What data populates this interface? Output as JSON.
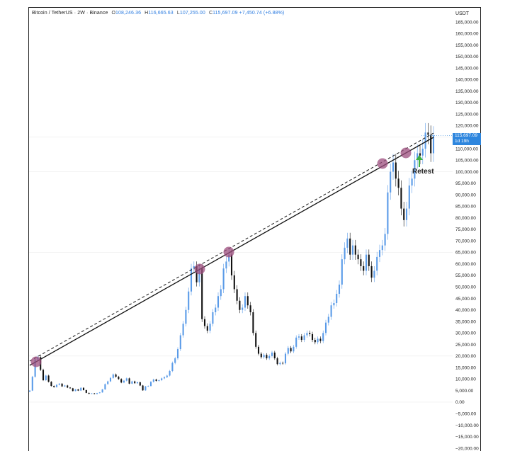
{
  "header": {
    "symbol": "Bitcoin / TetherUS · 2W · Binance",
    "open_label": "O",
    "open": "108,246.36",
    "high_label": "H",
    "high": "116,665.63",
    "low_label": "L",
    "low": "107,255.00",
    "close_label": "C",
    "close": "115,697.09",
    "change": "+7,450.74 (+6.88%)"
  },
  "axis": {
    "currency": "USDT",
    "last_price": "115,697.09",
    "countdown": "1d 19h"
  },
  "annotation": {
    "retest": "Retest"
  },
  "colors": {
    "up": "#5a9be8",
    "down": "#111111",
    "trendline": "#111111",
    "touch_marker": "#9c4d7e",
    "arrow": "#3cb043",
    "price_tag": "#2e86de"
  },
  "chart_data": {
    "type": "candlestick",
    "interval": "2W",
    "ylim": [
      -20000,
      165000
    ],
    "y_ticks": [
      -20000,
      -15000,
      -10000,
      -5000,
      0,
      5000,
      10000,
      15000,
      20000,
      25000,
      30000,
      35000,
      40000,
      45000,
      50000,
      55000,
      60000,
      65000,
      70000,
      75000,
      80000,
      85000,
      90000,
      95000,
      100000,
      105000,
      110000,
      115000,
      120000,
      125000,
      130000,
      135000,
      140000,
      145000,
      150000,
      155000,
      160000,
      165000
    ],
    "y_tick_labels": [
      "−20,000.00",
      "−15,000.00",
      "−10,000.00",
      "−5,000.00",
      "0.00",
      "5,000.00",
      "10,000.00",
      "15,000.00",
      "20,000.00",
      "25,000.00",
      "30,000.00",
      "35,000.00",
      "40,000.00",
      "45,000.00",
      "50,000.00",
      "55,000.00",
      "60,000.00",
      "65,000.00",
      "70,000.00",
      "75,000.00",
      "80,000.00",
      "85,000.00",
      "90,000.00",
      "95,000.00",
      "100,000.00",
      "105,000.00",
      "110,000.00",
      "115,000.00",
      "120,000.00",
      "125,000.00",
      "130,000.00",
      "135,000.00",
      "140,000.00",
      "145,000.00",
      "150,000.00",
      "155,000.00",
      "160,000.00",
      "165,000.00"
    ],
    "closes": [
      5000,
      11000,
      18500,
      19500,
      14000,
      9500,
      11500,
      8800,
      7000,
      6500,
      7500,
      8000,
      6800,
      7200,
      6300,
      6000,
      4800,
      5500,
      5000,
      6200,
      5200,
      4000,
      3600,
      3800,
      3500,
      3900,
      4200,
      5500,
      7800,
      9000,
      10500,
      12000,
      11000,
      10000,
      8500,
      9300,
      10300,
      8000,
      9000,
      8200,
      8600,
      7200,
      5100,
      6800,
      7000,
      8800,
      9800,
      9200,
      9500,
      10300,
      10800,
      11500,
      13500,
      17000,
      19000,
      23000,
      29000,
      34000,
      40000,
      48000,
      58000,
      59000,
      52000,
      58000,
      36000,
      33000,
      31000,
      34000,
      39000,
      41000,
      46000,
      49000,
      58000,
      61000,
      64000,
      55000,
      49000,
      44000,
      40000,
      41000,
      46000,
      42000,
      39000,
      30000,
      24000,
      21000,
      19500,
      20500,
      19000,
      20000,
      21500,
      19000,
      16500,
      17000,
      16800,
      21000,
      23500,
      22000,
      24000,
      28000,
      28500,
      27000,
      29000,
      30000,
      29500,
      27000,
      26000,
      27500,
      26500,
      30000,
      34500,
      37000,
      42000,
      43000,
      47000,
      51000,
      62000,
      67000,
      71000,
      64000,
      68000,
      64000,
      62000,
      59000,
      57000,
      64000,
      59000,
      54000,
      57000,
      63000,
      66000,
      68000,
      73000,
      91000,
      100000,
      104000,
      97000,
      93000,
      84000,
      79000,
      84000,
      94000,
      97000,
      105000,
      108000,
      107000,
      110000,
      117000,
      116000,
      108000,
      115697
    ]
  }
}
